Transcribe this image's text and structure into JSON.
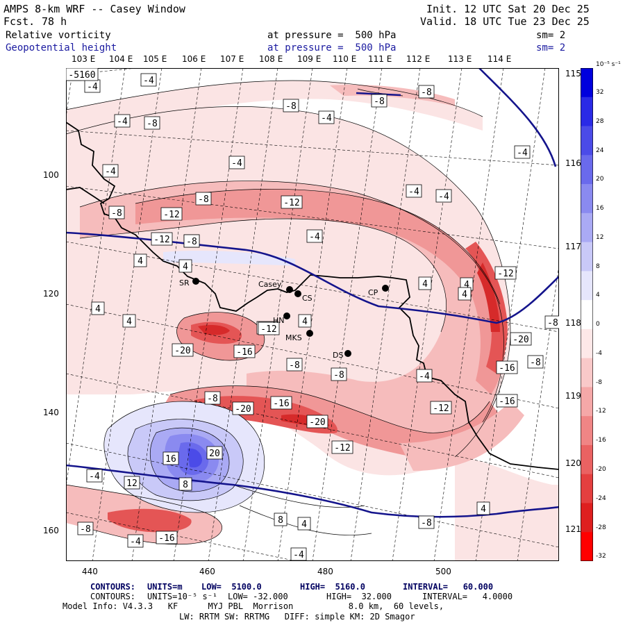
{
  "header": {
    "model": "AMPS 8-km WRF -- Casey Window",
    "fcst_label": "Fcst.",
    "fcst_value": "78 h",
    "init": "Init. 12 UTC Sat 20 Dec 25",
    "valid": "Valid. 18 UTC Tue 23 Dec 25",
    "field1_name": "Relative vorticity",
    "field1_level": "at pressure =  500 hPa",
    "field1_sm": "sm= 2",
    "field2_name": "Geopotential height",
    "field2_level": "at pressure =  500 hPa",
    "field2_sm": "sm= 2"
  },
  "axes": {
    "lon_labels": [
      "103 E",
      "104 E",
      "105 E",
      "106 E",
      "107 E",
      "108 E",
      "109 E",
      "110 E",
      "111 E",
      "112 E",
      "113 E",
      "114 E"
    ],
    "lat_labels": [
      "115 E",
      "116 E",
      "117 E",
      "118 E",
      "119 E",
      "120 E",
      "121 E"
    ],
    "y_ticks": [
      "100",
      "120",
      "140",
      "160"
    ],
    "x_ticks": [
      "440",
      "460",
      "480",
      "500"
    ]
  },
  "colorbar": {
    "unit": "10⁻⁵ s⁻¹",
    "labels": [
      "32",
      "28",
      "24",
      "20",
      "16",
      "12",
      "8",
      "4",
      "0",
      "-4",
      "-8",
      "-12",
      "-16",
      "-20",
      "-24",
      "-28",
      "-32"
    ],
    "colors": [
      "#0000dd",
      "#2a2ae6",
      "#4b4be8",
      "#6a6aec",
      "#8a8af0",
      "#aaaaf4",
      "#c9c9f8",
      "#e6e6fc",
      "#ffffff",
      "#fde8e8",
      "#f9c9c9",
      "#f5a8a8",
      "#f08585",
      "#ea6262",
      "#e43f3f",
      "#de1f1f",
      "#ff0000"
    ],
    "negative_color": "#ff0000",
    "positive_color": "#0000dd"
  },
  "stations": [
    {
      "name": "SR"
    },
    {
      "name": "Casey"
    },
    {
      "name": "CS"
    },
    {
      "name": "CP"
    },
    {
      "name": "HN"
    },
    {
      "name": "MKS"
    },
    {
      "name": "DS"
    }
  ],
  "contour_labels": [
    "-4",
    "-4",
    "-8",
    "-8",
    "-4",
    "-4",
    "-8",
    "-8",
    "-4",
    "-4",
    "-4",
    "-8",
    "-4",
    "-4",
    "-8",
    "-12",
    "-12",
    "-8",
    "-12",
    "-4",
    "-12",
    "-8",
    "-12",
    "4",
    "4",
    "4",
    "4",
    "4",
    "4",
    "4",
    "-12",
    "4",
    "-20",
    "-16",
    "-8",
    "-8",
    "-20",
    "-4",
    "-16",
    "-8",
    "-8",
    "-16",
    "-20",
    "-8",
    "-12",
    "-12",
    "-16",
    "-20",
    "20",
    "16",
    "8",
    "12",
    "8",
    "4",
    "4",
    "-8",
    "-8",
    "-4",
    "-4",
    "-16",
    "-4",
    "-4",
    "-5160"
  ],
  "footer": {
    "contours1_label": "CONTOURS:",
    "contours1_units": "UNITS=m",
    "contours1_low": "LOW=  5100.0",
    "contours1_high": "HIGH=  5160.0",
    "contours1_interval": "INTERVAL=   60.000",
    "contours2_label": "CONTOURS:",
    "contours2_units": "UNITS=10⁻⁵ s⁻¹",
    "contours2_low": "LOW= -32.000",
    "contours2_high": "HIGH=  32.000",
    "contours2_interval": "INTERVAL=   4.0000",
    "model_info": "Model Info: V4.3.3   KF      MYJ PBL  Morrison           8.0 km,  60 levels,",
    "physics_info": "LW: RRTM SW: RRTMG   DIFF: simple KM: 2D Smagor"
  }
}
